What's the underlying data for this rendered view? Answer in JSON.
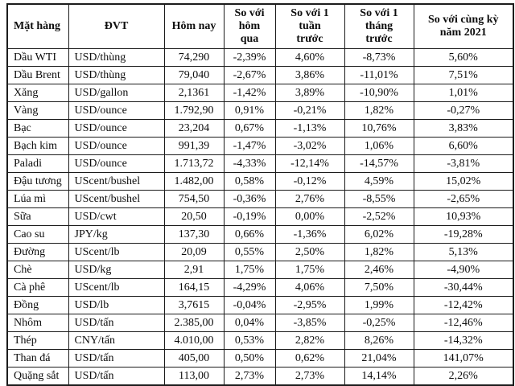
{
  "colors": {
    "background": "#ffffff",
    "border": "#1c1c1c",
    "text": "#0d0d0d"
  },
  "chart_data": {
    "type": "table",
    "title": "",
    "columns": [
      "Mặt hàng",
      "ĐVT",
      "Hôm nay",
      "So với\nhôm\nqua",
      "So với 1\ntuần\ntrước",
      "So với 1\ntháng\ntrước",
      "So với cùng kỳ\nnăm 2021"
    ],
    "rows": [
      [
        "Dầu WTI",
        "USD/thùng",
        "74,290",
        "-2,39%",
        "4,60%",
        "-8,73%",
        "5,60%"
      ],
      [
        "Dầu Brent",
        "USD/thùng",
        "79,040",
        "-2,67%",
        "3,86%",
        "-11,01%",
        "7,51%"
      ],
      [
        "Xăng",
        "USD/gallon",
        "2,1361",
        "-1,42%",
        "3,89%",
        "-10,90%",
        "1,01%"
      ],
      [
        "Vàng",
        "USD/ounce",
        "1.792,90",
        "0,91%",
        "-0,21%",
        "1,82%",
        "-0,27%"
      ],
      [
        "Bạc",
        "USD/ounce",
        "23,204",
        "0,67%",
        "-1,13%",
        "10,76%",
        "3,83%"
      ],
      [
        "Bạch kim",
        "USD/ounce",
        "991,39",
        "-1,47%",
        "-3,02%",
        "1,06%",
        "6,60%"
      ],
      [
        "Paladi",
        "USD/ounce",
        "1.713,72",
        "-4,33%",
        "-12,14%",
        "-14,57%",
        "-3,81%"
      ],
      [
        "Đậu tương",
        "UScent/bushel",
        "1.482,00",
        "0,58%",
        "-0,12%",
        "4,59%",
        "15,02%"
      ],
      [
        "Lúa mì",
        "UScent/bushel",
        "754,50",
        "-0,36%",
        "2,76%",
        "-8,55%",
        "-2,65%"
      ],
      [
        "Sữa",
        "USD/cwt",
        "20,50",
        "-0,19%",
        "0,00%",
        "-2,52%",
        "10,93%"
      ],
      [
        "Cao su",
        "JPY/kg",
        "137,30",
        "0,66%",
        "-1,36%",
        "6,02%",
        "-19,28%"
      ],
      [
        "Đường",
        "UScent/lb",
        "20,09",
        "0,55%",
        "2,50%",
        "1,82%",
        "5,13%"
      ],
      [
        "Chè",
        "USD/kg",
        "2,91",
        "1,75%",
        "1,75%",
        "2,46%",
        "-4,90%"
      ],
      [
        "Cà phê",
        "UScent/lb",
        "164,15",
        "-4,29%",
        "4,06%",
        "7,50%",
        "-30,44%"
      ],
      [
        "Đồng",
        "USD/lb",
        "3,7615",
        "-0,04%",
        "-2,95%",
        "1,99%",
        "-12,42%"
      ],
      [
        "Nhôm",
        "USD/tấn",
        "2.385,00",
        "0,04%",
        "-3,85%",
        "-0,25%",
        "-12,46%"
      ],
      [
        "Thép",
        "CNY/tấn",
        "4.010,00",
        "0,53%",
        "2,82%",
        "8,26%",
        "-14,32%"
      ],
      [
        "Than đá",
        "USD/tấn",
        "405,00",
        "0,50%",
        "0,62%",
        "21,04%",
        "141,07%"
      ],
      [
        "Quặng sắt",
        "USD/tấn",
        "113,00",
        "2,73%",
        "2,73%",
        "14,14%",
        "2,26%"
      ]
    ]
  }
}
